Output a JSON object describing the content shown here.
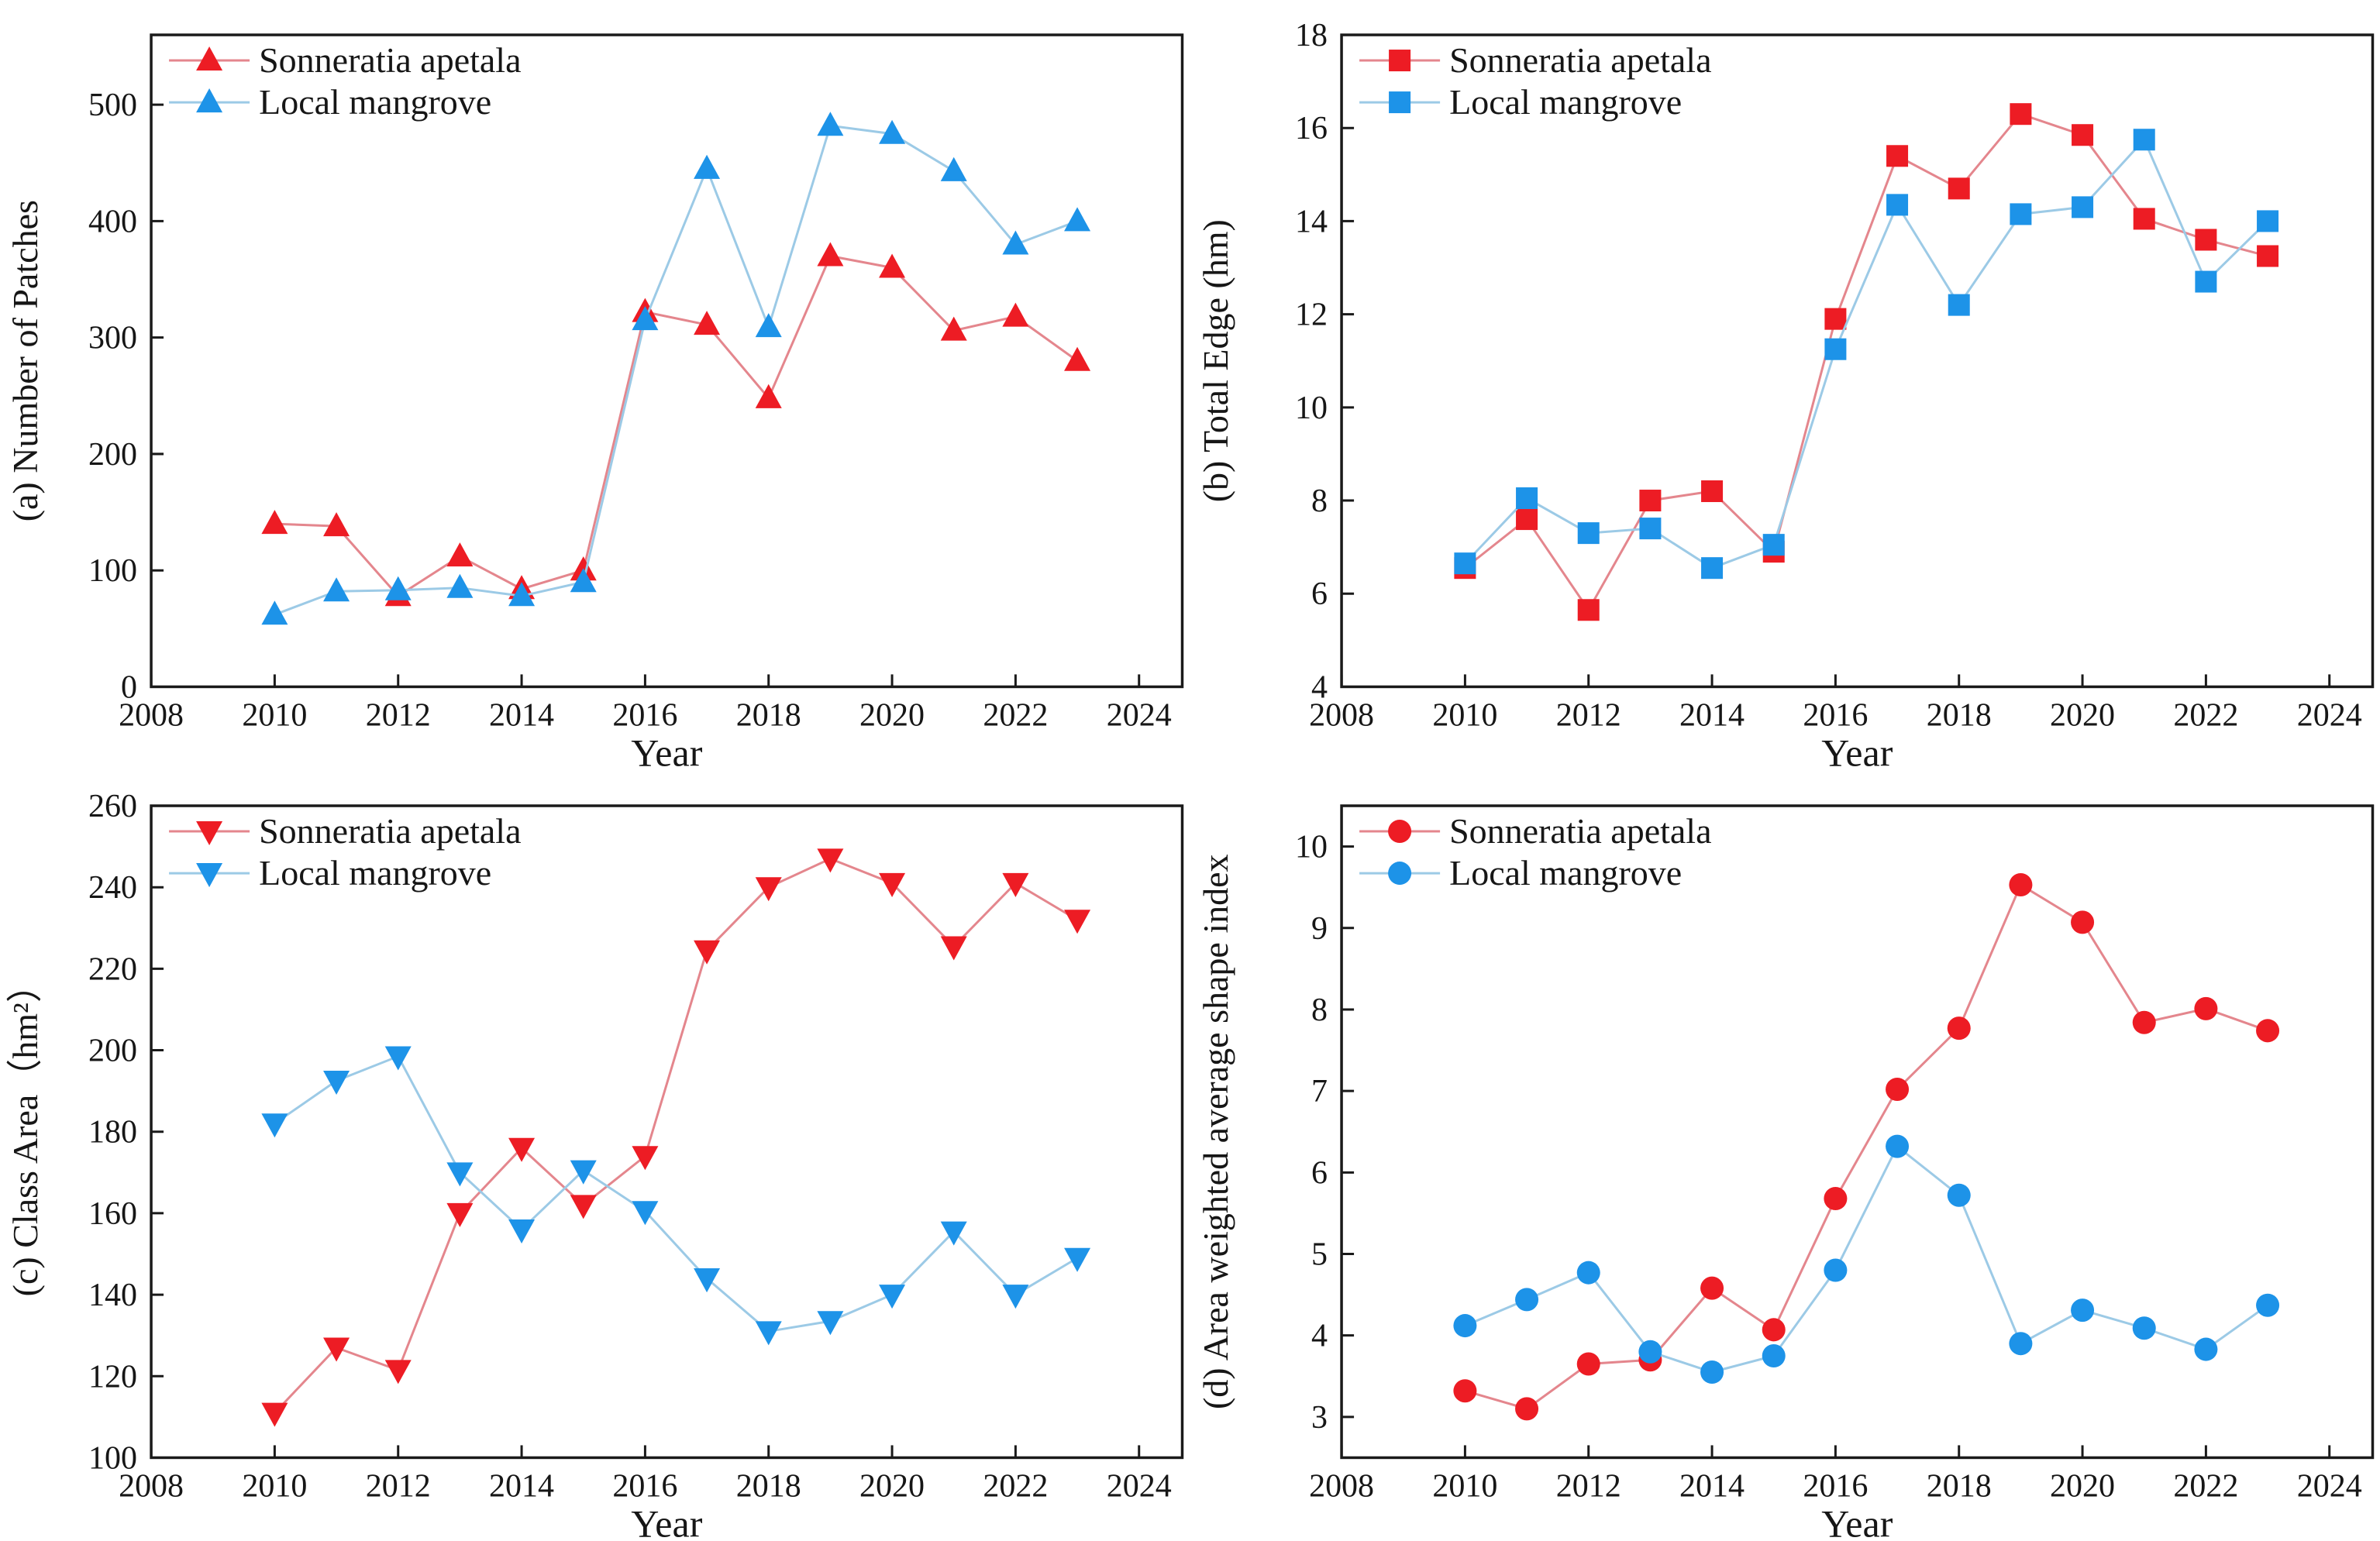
{
  "figure": {
    "background": "#ffffff",
    "x_axis_label": "Year",
    "legend_entries": [
      "Sonneratia apetala",
      "Local mangrove"
    ],
    "colors": {
      "sonneratia_marker": "#ed1c24",
      "sonneratia_line": "#e4868d",
      "local_marker": "#1d93e8",
      "local_line": "#9ccae6",
      "axis": "#1a1a1a",
      "text": "#161616"
    }
  },
  "chart_data": [
    {
      "id": "a",
      "type": "line",
      "title": "",
      "ylabel": "(a) Number of Patches",
      "xlabel": "Year",
      "marker": "triangle-up",
      "grid": false,
      "legend_position": "top-left",
      "x": [
        2010,
        2011,
        2012,
        2013,
        2014,
        2015,
        2016,
        2017,
        2018,
        2019,
        2020,
        2021,
        2022,
        2023
      ],
      "xlim": [
        2008,
        2024.7
      ],
      "xticks": [
        2008,
        2010,
        2012,
        2014,
        2016,
        2018,
        2020,
        2022,
        2024
      ],
      "ylim": [
        0,
        560
      ],
      "yticks": [
        0,
        100,
        200,
        300,
        400,
        500
      ],
      "series": [
        {
          "name": "Sonneratia apetala",
          "color": "#ed1c24",
          "line_color": "#e4868d",
          "values": [
            140,
            138,
            78,
            112,
            84,
            100,
            322,
            311,
            248,
            370,
            360,
            306,
            318,
            280
          ]
        },
        {
          "name": "Local mangrove",
          "color": "#1d93e8",
          "line_color": "#9ccae6",
          "values": [
            62,
            82,
            83,
            85,
            78,
            90,
            315,
            445,
            309,
            482,
            475,
            443,
            380,
            400
          ]
        }
      ]
    },
    {
      "id": "b",
      "type": "line",
      "title": "",
      "ylabel": "(b) Total Edge (hm)",
      "xlabel": "Year",
      "marker": "square",
      "grid": false,
      "legend_position": "top-left",
      "x": [
        2010,
        2011,
        2012,
        2013,
        2014,
        2015,
        2016,
        2017,
        2018,
        2019,
        2020,
        2021,
        2022,
        2023
      ],
      "xlim": [
        2008,
        2024.7
      ],
      "xticks": [
        2008,
        2010,
        2012,
        2014,
        2016,
        2018,
        2020,
        2022,
        2024
      ],
      "ylim": [
        4,
        18
      ],
      "yticks": [
        4,
        6,
        8,
        10,
        12,
        14,
        16,
        18
      ],
      "series": [
        {
          "name": "Sonneratia apetala",
          "color": "#ed1c24",
          "line_color": "#e4868d",
          "values": [
            6.55,
            7.6,
            5.65,
            8.0,
            8.2,
            6.9,
            11.9,
            15.4,
            14.7,
            16.3,
            15.85,
            14.05,
            13.6,
            13.25
          ]
        },
        {
          "name": "Local mangrove",
          "color": "#1d93e8",
          "line_color": "#9ccae6",
          "values": [
            6.65,
            8.05,
            7.3,
            7.4,
            6.55,
            7.05,
            11.25,
            14.35,
            12.2,
            14.15,
            14.3,
            15.75,
            12.7,
            14.0
          ]
        }
      ]
    },
    {
      "id": "c",
      "type": "line",
      "title": "",
      "ylabel": "(c) Class Area（hm²）",
      "xlabel": "Year",
      "marker": "triangle-down",
      "grid": false,
      "legend_position": "top-left",
      "x": [
        2010,
        2011,
        2012,
        2013,
        2014,
        2015,
        2016,
        2017,
        2018,
        2019,
        2020,
        2021,
        2022,
        2023
      ],
      "xlim": [
        2008,
        2024.7
      ],
      "xticks": [
        2008,
        2010,
        2012,
        2014,
        2016,
        2018,
        2020,
        2022,
        2024
      ],
      "ylim": [
        100,
        260
      ],
      "yticks": [
        100,
        120,
        140,
        160,
        180,
        200,
        220,
        240,
        260
      ],
      "series": [
        {
          "name": "Sonneratia apetala",
          "color": "#ed1c24",
          "line_color": "#e4868d",
          "values": [
            111,
            127,
            121.5,
            160,
            176,
            162,
            174,
            224.5,
            240,
            247,
            241,
            225.5,
            241,
            232
          ]
        },
        {
          "name": "Local mangrove",
          "color": "#1d93e8",
          "line_color": "#9ccae6",
          "values": [
            182,
            192.5,
            198.5,
            170,
            156,
            170.5,
            160.5,
            144,
            131,
            133.5,
            140,
            155.5,
            140,
            149
          ]
        }
      ]
    },
    {
      "id": "d",
      "type": "line",
      "title": "",
      "ylabel": "(d) Area weighted average shape index",
      "xlabel": "Year",
      "marker": "circle",
      "grid": false,
      "legend_position": "top-left",
      "x": [
        2010,
        2011,
        2012,
        2013,
        2014,
        2015,
        2016,
        2017,
        2018,
        2019,
        2020,
        2021,
        2022,
        2023
      ],
      "xlim": [
        2008,
        2024.7
      ],
      "xticks": [
        2008,
        2010,
        2012,
        2014,
        2016,
        2018,
        2020,
        2022,
        2024
      ],
      "ylim": [
        2.5,
        10.5
      ],
      "yticks": [
        3,
        4,
        5,
        6,
        7,
        8,
        9,
        10
      ],
      "series": [
        {
          "name": "Sonneratia apetala",
          "color": "#ed1c24",
          "line_color": "#e4868d",
          "values": [
            3.32,
            3.1,
            3.65,
            3.7,
            4.58,
            4.07,
            5.68,
            7.02,
            7.77,
            9.53,
            9.07,
            7.84,
            8.01,
            7.74
          ]
        },
        {
          "name": "Local mangrove",
          "color": "#1d93e8",
          "line_color": "#9ccae6",
          "values": [
            4.12,
            4.44,
            4.77,
            3.8,
            3.55,
            3.75,
            4.8,
            6.32,
            5.72,
            3.9,
            4.31,
            4.09,
            3.83,
            4.37
          ]
        }
      ]
    }
  ]
}
